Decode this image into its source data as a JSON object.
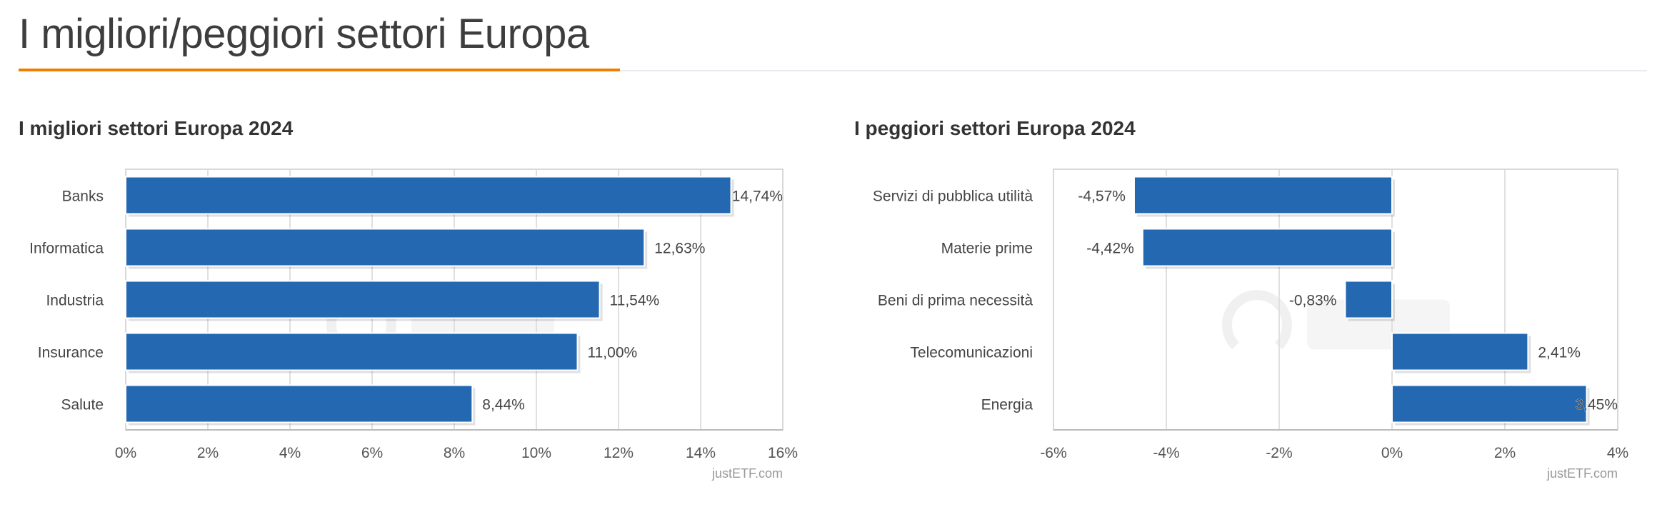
{
  "page": {
    "title": "I migliori/peggiori settori Europa"
  },
  "colors": {
    "bar": "#2368b0",
    "accent": "#ef7d00",
    "grid": "#e0e0e0",
    "text": "#444444"
  },
  "chart_data": [
    {
      "type": "bar",
      "orientation": "horizontal",
      "title": "I migliori settori Europa 2024",
      "categories": [
        "Banks",
        "Informatica",
        "Industria",
        "Insurance",
        "Salute"
      ],
      "values": [
        14.74,
        12.63,
        11.54,
        11.0,
        8.44
      ],
      "data_labels": [
        "14,74%",
        "12,63%",
        "11,54%",
        "11,00%",
        "8,44%"
      ],
      "xlim": [
        0,
        16
      ],
      "ticks": [
        0,
        2,
        4,
        6,
        8,
        10,
        12,
        14,
        16
      ],
      "tick_labels": [
        "0%",
        "2%",
        "4%",
        "6%",
        "8%",
        "10%",
        "12%",
        "14%",
        "16%"
      ],
      "grid": true,
      "credit": "justETF.com",
      "watermark": "justETF"
    },
    {
      "type": "bar",
      "orientation": "horizontal",
      "title": "I peggiori settori Europa 2024",
      "categories": [
        "Servizi di pubblica utilità",
        "Materie prime",
        "Beni di prima necessità",
        "Telecomunicazioni",
        "Energia"
      ],
      "values": [
        -4.57,
        -4.42,
        -0.83,
        2.41,
        3.45
      ],
      "data_labels": [
        "-4,57%",
        "-4,42%",
        "-0,83%",
        "2,41%",
        "3,45%"
      ],
      "xlim": [
        -6,
        4
      ],
      "ticks": [
        -6,
        -4,
        -2,
        0,
        2,
        4
      ],
      "tick_labels": [
        "-6%",
        "-4%",
        "-2%",
        "0%",
        "2%",
        "4%"
      ],
      "grid": true,
      "credit": "justETF.com",
      "watermark": "justETF"
    }
  ]
}
